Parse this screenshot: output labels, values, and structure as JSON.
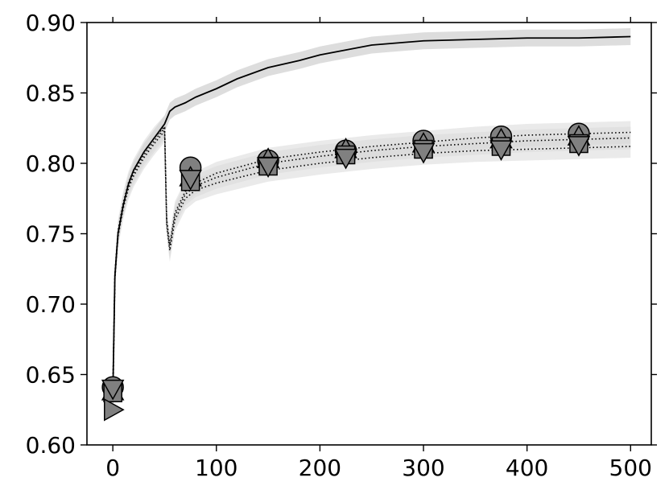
{
  "chart_data": {
    "type": "line",
    "title": "",
    "xlabel": "",
    "ylabel": "",
    "xlim": [
      -25,
      520
    ],
    "ylim": [
      0.6,
      0.9
    ],
    "xticks": [
      0,
      100,
      200,
      300,
      400,
      500
    ],
    "yticks": [
      0.6,
      0.65,
      0.7,
      0.75,
      0.8,
      0.85,
      0.9
    ],
    "xtick_labels": [
      "0",
      "100",
      "200",
      "300",
      "400",
      "500"
    ],
    "ytick_labels": [
      "0.60",
      "0.65",
      "0.70",
      "0.75",
      "0.80",
      "0.85",
      "0.90"
    ],
    "grid": false,
    "legend": "none",
    "colors": {
      "band": "#d9d9d9",
      "marker": "#808080",
      "line": "#000000"
    },
    "series": [
      {
        "style": "solid",
        "x": [
          0,
          2,
          5,
          10,
          15,
          20,
          30,
          40,
          50,
          55,
          60,
          70,
          80,
          100,
          120,
          150,
          180,
          200,
          250,
          300,
          350,
          400,
          450,
          500
        ],
        "y": [
          0.635,
          0.72,
          0.75,
          0.77,
          0.785,
          0.795,
          0.808,
          0.818,
          0.828,
          0.837,
          0.84,
          0.843,
          0.847,
          0.853,
          0.86,
          0.868,
          0.873,
          0.877,
          0.884,
          0.887,
          0.888,
          0.889,
          0.889,
          0.89
        ],
        "band": 0.006,
        "markers": []
      },
      {
        "style": "dotted",
        "x": [
          0,
          2,
          5,
          10,
          15,
          20,
          30,
          40,
          50,
          52,
          55,
          60,
          70,
          80,
          100,
          150,
          200,
          250,
          300,
          350,
          400,
          450,
          500
        ],
        "y": [
          0.64,
          0.722,
          0.752,
          0.772,
          0.786,
          0.795,
          0.808,
          0.818,
          0.826,
          0.76,
          0.742,
          0.765,
          0.78,
          0.786,
          0.793,
          0.803,
          0.808,
          0.812,
          0.815,
          0.818,
          0.82,
          0.821,
          0.822
        ],
        "band": 0.008,
        "markers": [
          {
            "shape": "circle",
            "x": [
              0,
              75,
              150,
              225,
              300,
              375,
              450
            ],
            "y": [
              0.641,
              0.797,
              0.802,
              0.809,
              0.816,
              0.819,
              0.821
            ]
          }
        ]
      },
      {
        "style": "dotted",
        "x": [
          0,
          2,
          5,
          10,
          15,
          20,
          30,
          40,
          50,
          52,
          55,
          60,
          70,
          80,
          100,
          150,
          200,
          250,
          300,
          350,
          400,
          450,
          500
        ],
        "y": [
          0.638,
          0.72,
          0.75,
          0.77,
          0.784,
          0.793,
          0.806,
          0.816,
          0.825,
          0.758,
          0.74,
          0.763,
          0.778,
          0.784,
          0.79,
          0.8,
          0.805,
          0.809,
          0.812,
          0.814,
          0.816,
          0.817,
          0.818
        ],
        "band": 0.008,
        "markers": [
          {
            "shape": "triangle-up",
            "x": [
              0,
              75,
              150,
              225,
              300,
              375,
              450
            ],
            "y": [
              0.638,
              0.79,
              0.803,
              0.81,
              0.814,
              0.817,
              0.819
            ]
          },
          {
            "shape": "square",
            "x": [
              0,
              75,
              150,
              225,
              300,
              375,
              450
            ],
            "y": [
              0.637,
              0.787,
              0.798,
              0.806,
              0.81,
              0.812,
              0.814
            ]
          }
        ]
      },
      {
        "style": "dotted",
        "x": [
          0,
          2,
          5,
          10,
          15,
          20,
          30,
          40,
          50,
          52,
          55,
          60,
          70,
          80,
          100,
          150,
          200,
          250,
          300,
          350,
          400,
          450,
          500
        ],
        "y": [
          0.625,
          0.718,
          0.748,
          0.768,
          0.782,
          0.791,
          0.804,
          0.814,
          0.823,
          0.756,
          0.738,
          0.76,
          0.775,
          0.781,
          0.786,
          0.795,
          0.8,
          0.804,
          0.807,
          0.809,
          0.81,
          0.811,
          0.812
        ],
        "band": 0.008,
        "markers": [
          {
            "shape": "triangle-down",
            "x": [
              0,
              75,
              150,
              225,
              300,
              375,
              450
            ],
            "y": [
              0.64,
              0.789,
              0.798,
              0.804,
              0.808,
              0.81,
              0.813
            ]
          },
          {
            "shape": "triangle-right",
            "x": [
              0
            ],
            "y": [
              0.625
            ]
          }
        ]
      }
    ]
  }
}
